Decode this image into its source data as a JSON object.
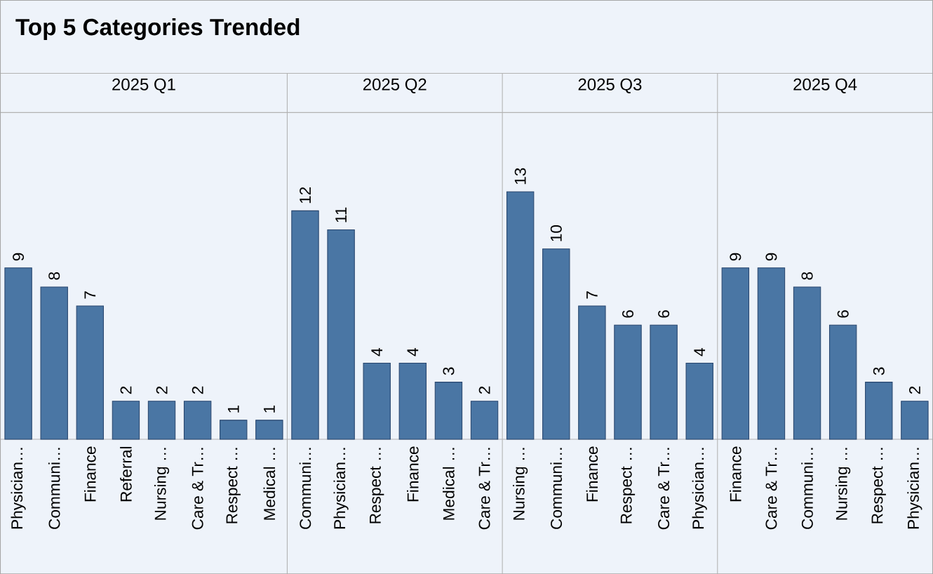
{
  "chart_data": [
    {
      "type": "bar",
      "title": "Top 5 Categories Trended",
      "subtitle": "2025 Q1",
      "categories": [
        "Physician…",
        "Communi…",
        "Finance",
        "Referral",
        "Nursing …",
        "Care & Tr…",
        "Respect …",
        "Medical …"
      ],
      "values": [
        9,
        8,
        7,
        2,
        2,
        2,
        1,
        1
      ],
      "color": "#4a76a4",
      "data_labels": true
    },
    {
      "type": "bar",
      "subtitle": "2025 Q2",
      "categories": [
        "Communi…",
        "Physician…",
        "Respect …",
        "Finance",
        "Medical …",
        "Care & Tr…"
      ],
      "values": [
        12,
        11,
        4,
        4,
        3,
        2
      ],
      "color": "#4a76a4",
      "data_labels": true
    },
    {
      "type": "bar",
      "subtitle": "2025 Q3",
      "categories": [
        "Nursing …",
        "Communi…",
        "Finance",
        "Respect …",
        "Care & Tr…",
        "Physician…"
      ],
      "values": [
        13,
        10,
        7,
        6,
        6,
        4
      ],
      "color": "#4a76a4",
      "data_labels": true
    },
    {
      "type": "bar",
      "subtitle": "2025 Q4",
      "categories": [
        "Finance",
        "Care & Tr…",
        "Communi…",
        "Nursing …",
        "Respect …",
        "Physician…"
      ],
      "values": [
        9,
        9,
        8,
        6,
        3,
        2
      ],
      "color": "#4a76a4",
      "data_labels": true
    }
  ]
}
